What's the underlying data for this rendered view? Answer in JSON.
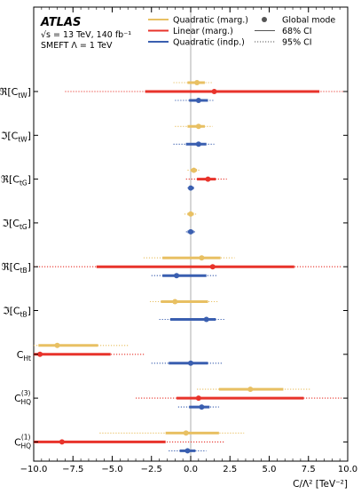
{
  "chart_data": {
    "type": "scatter",
    "experiment": "ATLAS",
    "info_lines": [
      "√s = 13 TeV, 140 fb⁻¹",
      "SMEFT Λ = 1 TeV"
    ],
    "xlabel": "C/Λ² [TeV⁻²]",
    "xlim": [
      -10.0,
      10.0
    ],
    "xticks": [
      "−10.0",
      "−7.5",
      "−5.0",
      "−2.5",
      "0.0",
      "2.5",
      "5.0",
      "7.5",
      "10.0"
    ],
    "legend_left": [
      {
        "label": "Quadratic (marg.)",
        "color": "#e8c063"
      },
      {
        "label": "Linear (marg.)",
        "color": "#e8332b"
      },
      {
        "label": "Quadratic (indp.)",
        "color": "#3a5fb0"
      }
    ],
    "legend_right": [
      {
        "label": "Global mode",
        "style": "marker"
      },
      {
        "label": "68% CI",
        "style": "solid"
      },
      {
        "label": "95% CI",
        "style": "dotted"
      }
    ],
    "series": [
      {
        "name": "Quadratic (marg.)",
        "color": "#e8c063"
      },
      {
        "name": "Linear (marg.)",
        "color": "#e8332b"
      },
      {
        "name": "Quadratic (indp.)",
        "color": "#3a5fb0"
      }
    ],
    "coefficients": [
      {
        "label": "ℜ[C_tW]",
        "main": "ℜ[C",
        "sub": "tW",
        "sup": "",
        "close": "]",
        "entries": [
          {
            "series": 0,
            "mode": 0.4,
            "ci68": [
              -0.2,
              0.9
            ],
            "ci95": [
              -1.1,
              1.4
            ]
          },
          {
            "series": 1,
            "mode": 1.5,
            "ci68": [
              -2.9,
              8.2
            ],
            "ci95": [
              -8.0,
              9.7
            ]
          },
          {
            "series": 2,
            "mode": 0.5,
            "ci68": [
              -0.1,
              1.1
            ],
            "ci95": [
              -1.0,
              1.5
            ]
          }
        ]
      },
      {
        "label": "ℑ[C_tW]",
        "main": "ℑ[C",
        "sub": "tW",
        "sup": "",
        "close": "]",
        "entries": [
          {
            "series": 0,
            "mode": 0.5,
            "ci68": [
              -0.2,
              0.9
            ],
            "ci95": [
              -1.0,
              1.4
            ]
          },
          {
            "series": 2,
            "mode": 0.5,
            "ci68": [
              -0.3,
              1.0
            ],
            "ci95": [
              -1.1,
              1.5
            ]
          }
        ]
      },
      {
        "label": "ℜ[C_tG]",
        "main": "ℜ[C",
        "sub": "tG",
        "sup": "",
        "close": "]",
        "entries": [
          {
            "series": 0,
            "mode": 0.2,
            "ci68": [
              0.0,
              0.4
            ],
            "ci95": [
              -0.2,
              0.6
            ]
          },
          {
            "series": 1,
            "mode": 1.1,
            "ci68": [
              0.4,
              1.6
            ],
            "ci95": [
              -0.3,
              2.3
            ]
          },
          {
            "series": 2,
            "mode": 0.0,
            "ci68": [
              -0.1,
              0.2
            ],
            "ci95": [
              -0.2,
              0.3
            ]
          }
        ]
      },
      {
        "label": "ℑ[C_tG]",
        "main": "ℑ[C",
        "sub": "tG",
        "sup": "",
        "close": "]",
        "entries": [
          {
            "series": 0,
            "mode": 0.0,
            "ci68": [
              -0.2,
              0.2
            ],
            "ci95": [
              -0.4,
              0.4
            ]
          },
          {
            "series": 2,
            "mode": 0.0,
            "ci68": [
              -0.2,
              0.2
            ],
            "ci95": [
              -0.3,
              0.3
            ]
          }
        ]
      },
      {
        "label": "ℜ[C_tB]",
        "main": "ℜ[C",
        "sub": "tB",
        "sup": "",
        "close": "]",
        "entries": [
          {
            "series": 0,
            "mode": 0.7,
            "ci68": [
              -1.8,
              1.9
            ],
            "ci95": [
              -3.0,
              2.8
            ]
          },
          {
            "series": 1,
            "mode": 1.4,
            "ci68": [
              -6.0,
              6.6
            ],
            "ci95": [
              -10.0,
              9.6
            ]
          },
          {
            "series": 2,
            "mode": -0.9,
            "ci68": [
              -1.8,
              1.0
            ],
            "ci95": [
              -2.5,
              1.7
            ]
          }
        ]
      },
      {
        "label": "ℑ[C_tB]",
        "main": "ℑ[C",
        "sub": "tB",
        "sup": "",
        "close": "]",
        "entries": [
          {
            "series": 0,
            "mode": -1.0,
            "ci68": [
              -1.9,
              1.1
            ],
            "ci95": [
              -2.6,
              1.8
            ]
          },
          {
            "series": 2,
            "mode": 1.0,
            "ci68": [
              -1.3,
              1.6
            ],
            "ci95": [
              -2.0,
              2.2
            ]
          }
        ]
      },
      {
        "label": "C_Ht",
        "main": "C",
        "sub": "Ht",
        "sup": "",
        "close": "",
        "entries": [
          {
            "series": 0,
            "mode": -8.5,
            "ci68": [
              -9.7,
              -5.9
            ],
            "ci95": [
              -10.0,
              -4.0
            ]
          },
          {
            "series": 1,
            "mode": -9.6,
            "ci68": [
              -10.0,
              -5.1
            ],
            "ci95": [
              -10.0,
              -2.9
            ]
          },
          {
            "series": 2,
            "mode": 0.0,
            "ci68": [
              -1.4,
              1.1
            ],
            "ci95": [
              -2.5,
              2.0
            ]
          }
        ]
      },
      {
        "label": "C_HQ^(3)",
        "main": "C",
        "sub": "HQ",
        "sup": "(3)",
        "close": "",
        "entries": [
          {
            "series": 0,
            "mode": 3.8,
            "ci68": [
              1.8,
              5.9
            ],
            "ci95": [
              0.4,
              7.6
            ]
          },
          {
            "series": 1,
            "mode": 0.5,
            "ci68": [
              -0.9,
              7.2
            ],
            "ci95": [
              -3.5,
              9.6
            ]
          },
          {
            "series": 2,
            "mode": 0.7,
            "ci68": [
              -0.1,
              1.2
            ],
            "ci95": [
              -0.8,
              1.8
            ]
          }
        ]
      },
      {
        "label": "C_HQ^(1)",
        "main": "C",
        "sub": "HQ",
        "sup": "(1)",
        "close": "",
        "entries": [
          {
            "series": 0,
            "mode": -0.3,
            "ci68": [
              -1.6,
              1.8
            ],
            "ci95": [
              -5.8,
              3.4
            ]
          },
          {
            "series": 1,
            "mode": -8.2,
            "ci68": [
              -10.0,
              -1.6
            ],
            "ci95": [
              -10.0,
              2.2
            ]
          },
          {
            "series": 2,
            "mode": -0.2,
            "ci68": [
              -0.7,
              0.3
            ],
            "ci95": [
              -1.4,
              1.0
            ]
          }
        ]
      }
    ]
  }
}
